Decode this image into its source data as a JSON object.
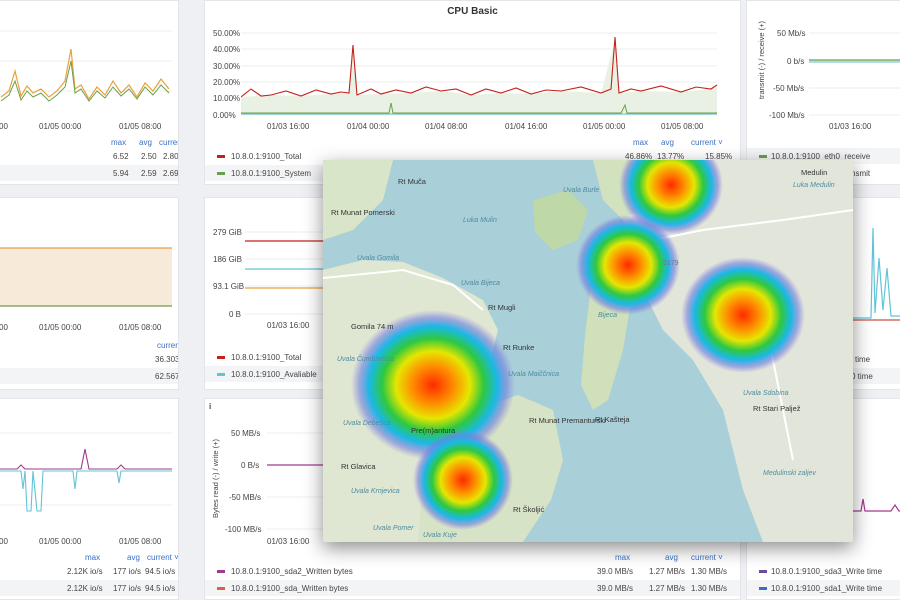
{
  "colors": {
    "dark_red": "#c4211a",
    "green": "#6a9f4b",
    "cyan": "#62c4d6",
    "orange": "#e8a13c",
    "magenta": "#a2398e",
    "purple": "#6d4c97"
  },
  "p1": {
    "x_ticks": [
      "00",
      "01/05 00:00",
      "01/05 08:00"
    ],
    "header": {
      "max": "max",
      "avg": "avg",
      "current": "current"
    },
    "rows": [
      {
        "max": "6.52",
        "avg": "2.50",
        "current": "2.80"
      },
      {
        "max": "5.94",
        "avg": "2.59",
        "current": "2.69"
      }
    ]
  },
  "cpu": {
    "title": "CPU Basic",
    "y_ticks": [
      "50.00%",
      "40.00%",
      "30.00%",
      "20.00%",
      "10.00%",
      "0.00%"
    ],
    "x_ticks": [
      "01/03 16:00",
      "01/04 00:00",
      "01/04 08:00",
      "01/04 16:00",
      "01/05 00:00",
      "01/05 08:00"
    ],
    "header": {
      "max": "max",
      "avg": "avg",
      "current": "current ˅"
    },
    "legend": [
      {
        "name": "10.8.0.1:9100_Total",
        "max": "46.86%",
        "avg": "13.77%",
        "current": "15.85%"
      },
      {
        "name": "10.8.0.1:9100_System"
      }
    ]
  },
  "net": {
    "y_ticks": [
      "50 Mb/s",
      "0 b/s",
      "-50 Mb/s",
      "-100 Mb/s"
    ],
    "y_label": "transmit (-) / receive (+)",
    "x_ticks": [
      "01/03 16:00"
    ],
    "legend": [
      "10.8.0.1:9100_eth0_receive",
      "nsmit"
    ]
  },
  "p4": {
    "x_ticks": [
      "00",
      "01/05 00:00",
      "01/05 08:00"
    ],
    "header": {
      "current": "current"
    },
    "rows": [
      {
        "current": "36.303%"
      },
      {
        "current": "62.567%"
      }
    ]
  },
  "mem": {
    "y_ticks": [
      "279 GiB",
      "186 GiB",
      "93.1 GiB",
      "0 B"
    ],
    "x_ticks": [
      "01/03 16:00"
    ],
    "legend": [
      "10.8.0.1:9100_Total",
      "10.8.0.1:9100_Avaliable"
    ]
  },
  "right_mid": {
    "rows": [
      "time",
      "0 time"
    ]
  },
  "p7": {
    "x_ticks": [
      "00",
      "01/05 00:00",
      "01/05 08:00"
    ],
    "header": {
      "max": "max",
      "avg": "avg",
      "current": "current ˅"
    },
    "rows": [
      {
        "max": "2.12K io/s",
        "avg": "177 io/s",
        "current": "94.5 io/s"
      },
      {
        "max": "2.12K io/s",
        "avg": "177 io/s",
        "current": "94.5 io/s"
      }
    ]
  },
  "disk": {
    "info": "i",
    "y_ticks": [
      "50 MB/s",
      "0 B/s",
      "-50 MB/s",
      "-100 MB/s"
    ],
    "y_label": "Bytes read (-) / write (+)",
    "x_ticks": [
      "01/03 16:00"
    ],
    "header": {
      "max": "max",
      "avg": "avg",
      "current": "current ˅"
    },
    "legend": [
      {
        "name": "10.8.0.1:9100_sda2_Written bytes",
        "max": "39.0 MB/s",
        "avg": "1.27 MB/s",
        "current": "1.30 MB/s"
      },
      {
        "name": "10.8.0.1:9100_sda_Written bytes",
        "max": "39.0 MB/s",
        "avg": "1.27 MB/s",
        "current": "1.30 MB/s"
      }
    ]
  },
  "bottom_right": {
    "legend": [
      "10.8.0.1:9100_sda3_Write time",
      "10.8.0.1:9100_sda1_Write time"
    ]
  },
  "map": {
    "places": [
      "Rt Muča",
      "Luka Mulin",
      "Rt Munat Pomerski",
      "Uvala Gomila",
      "Uvala Burle",
      "Luka Medulin",
      "Uvala Bijeca",
      "Uvala Sdobina",
      "Rt Mugli",
      "Gomila 74 m",
      "Uvala Čumbrašica",
      "Rt Runke",
      "Uvala Maiččnica",
      "Pre(m)antura",
      "Rt Munat Premanturski",
      "Rt Kašteja",
      "Rt Glavica",
      "Uvala Debešca",
      "Uvala Krnjevica",
      "Rt Školjić",
      "Rt Stari Paljež",
      "Medulin",
      "Medulinski zaljev",
      "Uvala Pomer",
      "Uvala Kuje",
      "5179",
      "Bijeca"
    ],
    "heat_levels": [
      1.0,
      0.8,
      0.7,
      0.6,
      0.55
    ]
  }
}
